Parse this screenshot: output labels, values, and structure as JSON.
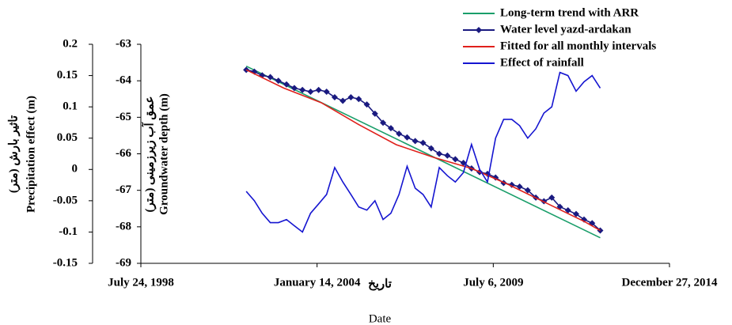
{
  "chart_data": {
    "type": "line",
    "x_label": "تاریخ",
    "x_label_2": "Date",
    "y_label": "Precipitation effect (m)",
    "y_label_2": "تاثیر بارش (متر)",
    "y2_label": "Groundwater depth (m)",
    "y2_label_2": "عمق آب زیرزمینی (متر)",
    "xlim": [
      "1998-07-24",
      "2014-12-27"
    ],
    "xticks": [
      {
        "value": "1998-07-24",
        "label": "July 24, 1998"
      },
      {
        "value": "2004-01-14",
        "label": "January 14, 2004"
      },
      {
        "value": "2009-07-06",
        "label": "July 6, 2009"
      },
      {
        "value": "2014-12-27",
        "label": "December 27, 2014"
      }
    ],
    "ylim": [
      -0.15,
      0.2
    ],
    "yticks": [
      0.2,
      0.15,
      0.1,
      0.05,
      0,
      -0.05,
      -0.1,
      -0.15
    ],
    "y2lim": [
      -69,
      -63
    ],
    "y2ticks": [
      -63,
      -64,
      -65,
      -66,
      -67,
      -68,
      -69
    ],
    "x": [
      "2001-11-01",
      "2002-02-01",
      "2002-05-01",
      "2002-08-01",
      "2002-11-01",
      "2003-02-01",
      "2003-05-01",
      "2003-08-01",
      "2003-11-01",
      "2004-02-01",
      "2004-05-01",
      "2004-08-01",
      "2004-11-01",
      "2005-02-01",
      "2005-05-01",
      "2005-08-01",
      "2005-11-01",
      "2006-02-01",
      "2006-05-01",
      "2006-08-01",
      "2006-11-01",
      "2007-02-01",
      "2007-05-01",
      "2007-08-01",
      "2007-11-01",
      "2008-02-01",
      "2008-05-01",
      "2008-08-01",
      "2008-11-01",
      "2009-02-01",
      "2009-05-01",
      "2009-08-01",
      "2009-11-01",
      "2010-02-01",
      "2010-05-01",
      "2010-08-01",
      "2010-11-01",
      "2011-02-01",
      "2011-05-01",
      "2011-08-01",
      "2011-11-01",
      "2012-02-01",
      "2012-05-01",
      "2012-08-01",
      "2012-11-01"
    ],
    "series": [
      {
        "name": "Long-term trend with ARR",
        "color": "#1a9e6a",
        "axis": "y2",
        "x": [
          "2001-11-01",
          "2012-11-01"
        ],
        "values": [
          -63.6,
          -68.3
        ]
      },
      {
        "name": "Water level yazd-ardakan",
        "color": "#1a1a80",
        "axis": "y2",
        "marker": "diamond",
        "values": [
          -63.7,
          -63.75,
          -63.85,
          -63.9,
          -64.0,
          -64.1,
          -64.2,
          -64.25,
          -64.3,
          -64.25,
          -64.3,
          -64.45,
          -64.55,
          -64.45,
          -64.5,
          -64.65,
          -64.9,
          -65.15,
          -65.3,
          -65.45,
          -65.55,
          -65.65,
          -65.7,
          -65.85,
          -66.0,
          -66.05,
          -66.15,
          -66.25,
          -66.4,
          -66.5,
          -66.55,
          -66.65,
          -66.8,
          -66.85,
          -66.9,
          -67.0,
          -67.2,
          -67.3,
          -67.2,
          -67.45,
          -67.55,
          -67.65,
          -67.8,
          -67.9,
          -68.1
        ]
      },
      {
        "name": "Fitted for all monthly intervals",
        "color": "#e0201b",
        "axis": "y2",
        "x": [
          "2001-11-01",
          "2003-01-01",
          "2004-03-01",
          "2005-05-01",
          "2006-07-01",
          "2007-09-01",
          "2008-11-01",
          "2010-01-01",
          "2011-03-01",
          "2012-05-01",
          "2012-11-01"
        ],
        "values": [
          -63.7,
          -64.2,
          -64.6,
          -65.2,
          -65.75,
          -66.1,
          -66.4,
          -66.85,
          -67.35,
          -67.85,
          -68.1
        ]
      },
      {
        "name": "Effect of rainfall",
        "color": "#1515d0",
        "values": [
          -0.035,
          -0.05,
          -0.07,
          -0.085,
          -0.085,
          -0.08,
          -0.09,
          -0.1,
          -0.07,
          -0.055,
          -0.04,
          0.003,
          -0.02,
          -0.04,
          -0.06,
          -0.065,
          -0.05,
          -0.08,
          -0.07,
          -0.04,
          0.005,
          -0.03,
          -0.04,
          -0.06,
          0.003,
          -0.01,
          -0.02,
          -0.005,
          0.04,
          0,
          -0.02,
          0.05,
          0.08,
          0.08,
          0.07,
          0.05,
          0.065,
          0.09,
          0.1,
          0.155,
          0.15,
          0.125,
          0.14,
          0.15,
          0.13
        ]
      }
    ]
  }
}
